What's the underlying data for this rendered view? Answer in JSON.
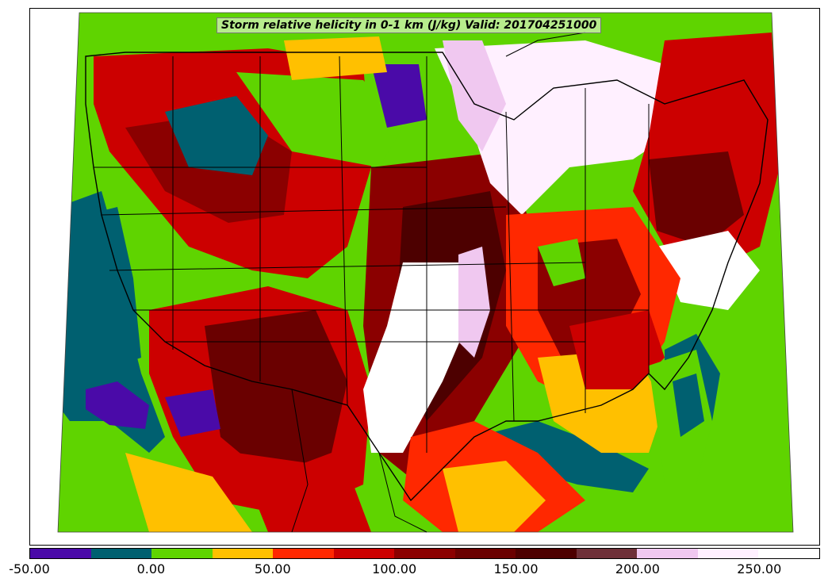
{
  "title": "Storm relative helicity in 0-1 km (J/kg) Valid: 201704251000",
  "colorbar": {
    "colors": [
      "#4a0aa8",
      "#006070",
      "#5fd400",
      "#ffc000",
      "#ff2800",
      "#cc0000",
      "#8b0000",
      "#6a0000",
      "#4d0000",
      "#6e3038",
      "#f0c8f0",
      "#fff0ff",
      "#ffffff"
    ],
    "tick_labels": [
      "-50.00",
      "0.00",
      "50.00",
      "100.00",
      "150.00",
      "200.00",
      "250.00"
    ]
  },
  "legend_icon": "colorbar",
  "map_icon": "conus-helicity-map"
}
